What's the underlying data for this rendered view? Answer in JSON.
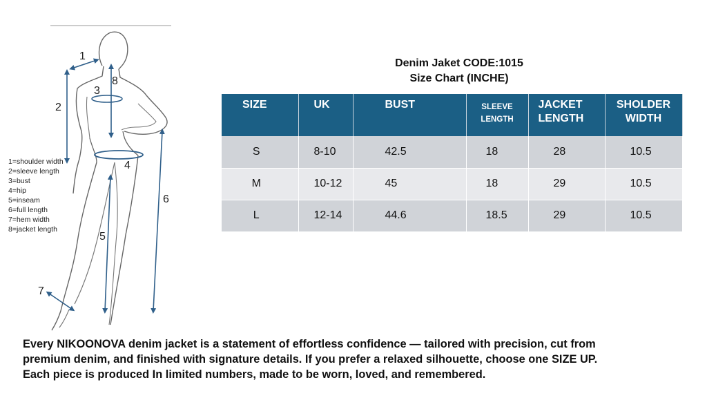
{
  "figure": {
    "markers": [
      "1",
      "2",
      "3",
      "4",
      "5",
      "6",
      "7",
      "8"
    ],
    "legend": [
      "1=shoulder width",
      "2=sleeve length",
      "3=bust",
      "4=hip",
      "5=inseam",
      "6=full length",
      "7=hem width",
      "8=jacket length"
    ],
    "arrow_color": "#2f5f8a"
  },
  "title": {
    "line1": "Denim Jaket CODE:1015",
    "line2": "Size Chart (INCHE)"
  },
  "table": {
    "header_color": "#1b5f85",
    "headers": {
      "size": "SIZE",
      "uk": "UK",
      "bust": "BUST",
      "sleeve_line1": "SLEEVE",
      "sleeve_line2": "LENGTH",
      "jacket_line1": "JACKET",
      "jacket_line2": "LENGTH",
      "sholder_line1": "SHOLDER",
      "sholder_line2": "WIDTH"
    },
    "rows": [
      {
        "size": "S",
        "uk": "8-10",
        "bust": "42.5",
        "sleeve": "18",
        "jacket": "28",
        "sholder": "10.5"
      },
      {
        "size": "M",
        "uk": "10-12",
        "bust": "45",
        "sleeve": "18",
        "jacket": "29",
        "sholder": "10.5"
      },
      {
        "size": "L",
        "uk": "12-14",
        "bust": "44.6",
        "sleeve": "18.5",
        "jacket": "29",
        "sholder": "10.5"
      }
    ]
  },
  "description": {
    "line1": "Every NIKOONOVA denim jacket is a statement of effortless confidence — tailored with precision, cut from",
    "line2": "premium denim, and finished with signature details. If you prefer a relaxed silhouette, choose one SIZE UP.",
    "line3": "Each piece is produced In limited numbers, made to be worn, loved, and remembered."
  }
}
